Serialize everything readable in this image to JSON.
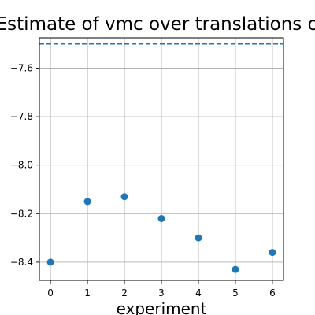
{
  "chart_data": {
    "type": "scatter",
    "title": "Energy Estimate of vmc over translations of system",
    "xlabel": "experiment",
    "ylabel": "",
    "x": [
      0,
      1,
      2,
      3,
      4,
      5,
      6
    ],
    "y": [
      -8.4,
      -8.15,
      -8.13,
      -8.22,
      -8.3,
      -8.43,
      -8.36
    ],
    "xticks": [
      0,
      1,
      2,
      3,
      4,
      5,
      6
    ],
    "yticks": [
      -8.4,
      -8.2,
      -8.0,
      -7.8,
      -7.6
    ],
    "xtick_labels": [
      "0",
      "1",
      "2",
      "3",
      "4",
      "5",
      "6"
    ],
    "ytick_labels": [
      "−8.4",
      "−8.2",
      "−8.0",
      "−7.8",
      "−7.6"
    ],
    "xlim": [
      -0.3,
      6.3
    ],
    "ylim": [
      -8.475,
      -7.475
    ],
    "reference_line": {
      "y": -7.5,
      "style": "dashed"
    },
    "grid": true,
    "marker_color": "#1f77b4",
    "line_color": "#1f77b4"
  }
}
